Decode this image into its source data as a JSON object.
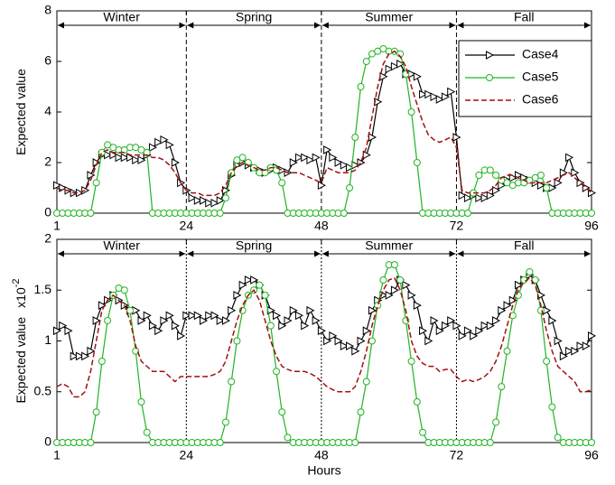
{
  "chart_data": [
    {
      "type": "line",
      "ylabel": "Expected value",
      "x": [
        1,
        2,
        3,
        4,
        5,
        6,
        7,
        8,
        9,
        10,
        11,
        12,
        13,
        14,
        15,
        16,
        17,
        18,
        19,
        20,
        21,
        22,
        23,
        24,
        25,
        26,
        27,
        28,
        29,
        30,
        31,
        32,
        33,
        34,
        35,
        36,
        37,
        38,
        39,
        40,
        41,
        42,
        43,
        44,
        45,
        46,
        47,
        48,
        49,
        50,
        51,
        52,
        53,
        54,
        55,
        56,
        57,
        58,
        59,
        60,
        61,
        62,
        63,
        64,
        65,
        66,
        67,
        68,
        69,
        70,
        71,
        72,
        73,
        74,
        75,
        76,
        77,
        78,
        79,
        80,
        81,
        82,
        83,
        84,
        85,
        86,
        87,
        88,
        89,
        90,
        91,
        92,
        93,
        94,
        95,
        96
      ],
      "xlim": [
        1,
        96
      ],
      "xticks": [
        1,
        24,
        48,
        72,
        96
      ],
      "ylim": [
        0,
        8
      ],
      "yticks": [
        0,
        2,
        4,
        6,
        8
      ],
      "seasons": [
        {
          "label": "Winter",
          "start": 1,
          "end": 24
        },
        {
          "label": "Spring",
          "start": 24,
          "end": 48
        },
        {
          "label": "Summer",
          "start": 48,
          "end": 72
        },
        {
          "label": "Fall",
          "start": 72,
          "end": 96
        }
      ],
      "legend": "upper right",
      "series": [
        {
          "name": "Case4",
          "color": "#000000",
          "marker": "triangle-right",
          "dash": false,
          "values": [
            1.1,
            1.0,
            0.9,
            0.8,
            0.8,
            0.9,
            1.5,
            2.0,
            2.3,
            2.3,
            2.3,
            2.2,
            2.2,
            2.2,
            2.1,
            2.1,
            2.3,
            2.6,
            2.8,
            2.9,
            2.7,
            2.0,
            1.2,
            0.9,
            0.6,
            0.5,
            0.5,
            0.4,
            0.4,
            0.5,
            0.9,
            1.5,
            1.9,
            2.0,
            1.9,
            1.8,
            1.7,
            1.6,
            1.7,
            1.8,
            1.7,
            1.6,
            2.0,
            2.2,
            2.2,
            2.1,
            2.2,
            1.1,
            2.5,
            2.2,
            2.0,
            1.9,
            1.8,
            1.9,
            2.0,
            2.3,
            3.0,
            4.4,
            5.4,
            5.7,
            5.8,
            5.9,
            5.5,
            5.5,
            5.4,
            4.7,
            4.7,
            4.6,
            4.5,
            4.6,
            4.8,
            3.0,
            0.7,
            0.6,
            0.7,
            0.6,
            0.6,
            0.7,
            0.9,
            1.1,
            1.3,
            1.4,
            1.5,
            1.4,
            1.3,
            1.2,
            1.1,
            1.0,
            1.0,
            1.2,
            1.6,
            2.2,
            1.6,
            1.2,
            1.0,
            0.8
          ]
        },
        {
          "name": "Case5",
          "color": "#22b422",
          "marker": "circle",
          "dash": false,
          "values": [
            0,
            0,
            0,
            0,
            0,
            0,
            0,
            1.2,
            2.4,
            2.7,
            2.6,
            2.5,
            2.5,
            2.6,
            2.6,
            2.5,
            2.4,
            0,
            0,
            0,
            0,
            0,
            0,
            0,
            0,
            0,
            0,
            0,
            0,
            0,
            0.6,
            1.6,
            2.1,
            2.2,
            2.0,
            1.8,
            1.6,
            1.6,
            1.8,
            1.7,
            1.2,
            0,
            0,
            0,
            0,
            0,
            0,
            0,
            0,
            0,
            0,
            0,
            1.0,
            3.0,
            5.0,
            6.0,
            6.3,
            6.4,
            6.5,
            6.4,
            6.4,
            6.3,
            5.5,
            4.0,
            2.0,
            0,
            0,
            0,
            0,
            0,
            0,
            0,
            0,
            0,
            0.8,
            1.5,
            1.7,
            1.7,
            1.5,
            1.3,
            1.2,
            1.1,
            1.2,
            1.2,
            1.3,
            1.4,
            1.5,
            1.0,
            0,
            0,
            0,
            0,
            0,
            0,
            0,
            0
          ]
        },
        {
          "name": "Case6",
          "color": "#a01010",
          "marker": "none",
          "dash": true,
          "values": [
            1.0,
            0.9,
            0.9,
            0.8,
            0.8,
            0.9,
            1.3,
            1.9,
            2.4,
            2.5,
            2.4,
            2.4,
            2.4,
            2.3,
            2.3,
            2.3,
            2.3,
            2.2,
            2.2,
            2.1,
            1.9,
            1.6,
            1.2,
            0.9,
            0.8,
            0.8,
            0.7,
            0.7,
            0.7,
            0.8,
            1.1,
            1.6,
            1.9,
            2.0,
            1.9,
            1.8,
            1.7,
            1.7,
            1.8,
            1.8,
            1.7,
            1.6,
            1.6,
            1.6,
            1.5,
            1.4,
            1.3,
            1.2,
            1.8,
            1.7,
            1.6,
            1.6,
            1.6,
            1.7,
            2.0,
            2.6,
            3.8,
            5.0,
            5.9,
            6.3,
            6.4,
            6.2,
            5.8,
            5.0,
            4.3,
            3.6,
            3.1,
            2.9,
            2.8,
            2.9,
            3.0,
            2.6,
            0.9,
            0.8,
            0.8,
            0.8,
            0.8,
            0.9,
            1.1,
            1.4,
            1.5,
            1.5,
            1.4,
            1.3,
            1.2,
            1.2,
            1.2,
            1.2,
            1.3,
            1.4,
            1.5,
            1.6,
            1.4,
            1.2,
            1.0,
            0.8
          ]
        }
      ]
    },
    {
      "type": "line",
      "ylabel": "Expected value",
      "y_multiplier": {
        "base": "x10",
        "exponent": "-2"
      },
      "xlabel": "Hours",
      "x": [
        1,
        2,
        3,
        4,
        5,
        6,
        7,
        8,
        9,
        10,
        11,
        12,
        13,
        14,
        15,
        16,
        17,
        18,
        19,
        20,
        21,
        22,
        23,
        24,
        25,
        26,
        27,
        28,
        29,
        30,
        31,
        32,
        33,
        34,
        35,
        36,
        37,
        38,
        39,
        40,
        41,
        42,
        43,
        44,
        45,
        46,
        47,
        48,
        49,
        50,
        51,
        52,
        53,
        54,
        55,
        56,
        57,
        58,
        59,
        60,
        61,
        62,
        63,
        64,
        65,
        66,
        67,
        68,
        69,
        70,
        71,
        72,
        73,
        74,
        75,
        76,
        77,
        78,
        79,
        80,
        81,
        82,
        83,
        84,
        85,
        86,
        87,
        88,
        89,
        90,
        91,
        92,
        93,
        94,
        95,
        96
      ],
      "xlim": [
        1,
        96
      ],
      "xticks": [
        1,
        24,
        48,
        72,
        96
      ],
      "ylim": [
        0,
        2
      ],
      "yticks": [
        0,
        0.5,
        1,
        1.5,
        2
      ],
      "seasons": [
        {
          "label": "Winter",
          "start": 1,
          "end": 24
        },
        {
          "label": "Spring",
          "start": 24,
          "end": 48
        },
        {
          "label": "Summer",
          "start": 48,
          "end": 72
        },
        {
          "label": "Fall",
          "start": 72,
          "end": 96
        }
      ],
      "series": [
        {
          "color": "#000000",
          "marker": "triangle-right",
          "dash": false,
          "values": [
            1.1,
            1.15,
            1.1,
            0.85,
            0.85,
            0.85,
            0.9,
            1.2,
            1.35,
            1.4,
            1.45,
            1.4,
            1.35,
            1.3,
            1.3,
            1.2,
            1.25,
            1.15,
            1.1,
            1.2,
            1.25,
            1.15,
            1.05,
            1.25,
            1.25,
            1.25,
            1.2,
            1.25,
            1.25,
            1.2,
            1.2,
            1.3,
            1.45,
            1.55,
            1.6,
            1.6,
            1.55,
            1.45,
            1.3,
            1.25,
            1.15,
            1.2,
            1.3,
            1.25,
            1.15,
            1.3,
            1.2,
            1.1,
            1.0,
            1.05,
            1.0,
            0.95,
            0.95,
            0.9,
            1.0,
            1.1,
            1.3,
            1.4,
            1.45,
            1.45,
            1.5,
            1.6,
            1.55,
            1.45,
            1.35,
            1.1,
            1.0,
            1.2,
            1.1,
            1.15,
            1.2,
            1.15,
            1.05,
            1.1,
            1.05,
            1.1,
            1.15,
            1.15,
            1.2,
            1.3,
            1.35,
            1.4,
            1.55,
            1.6,
            1.65,
            1.6,
            1.45,
            1.3,
            1.2,
            1.0,
            0.85,
            0.9,
            0.9,
            0.95,
            0.95,
            1.05
          ]
        },
        {
          "color": "#22b422",
          "marker": "circle",
          "dash": false,
          "values": [
            0,
            0,
            0,
            0,
            0,
            0,
            0,
            0.3,
            0.8,
            1.2,
            1.45,
            1.52,
            1.5,
            1.3,
            0.9,
            0.4,
            0.1,
            0,
            0,
            0,
            0,
            0,
            0,
            0,
            0,
            0,
            0,
            0,
            0,
            0,
            0.2,
            0.6,
            1.0,
            1.3,
            1.45,
            1.5,
            1.55,
            1.45,
            1.15,
            0.7,
            0.3,
            0.05,
            0,
            0,
            0,
            0,
            0,
            0,
            0,
            0,
            0,
            0,
            0,
            0,
            0.3,
            0.6,
            1.0,
            1.35,
            1.6,
            1.75,
            1.75,
            1.6,
            1.2,
            0.8,
            0.4,
            0.1,
            0,
            0,
            0,
            0,
            0,
            0,
            0,
            0,
            0,
            0,
            0,
            0,
            0.2,
            0.55,
            0.9,
            1.25,
            1.45,
            1.6,
            1.68,
            1.6,
            1.3,
            0.8,
            0.35,
            0.05,
            0,
            0,
            0,
            0,
            0,
            0
          ]
        },
        {
          "color": "#a01010",
          "marker": "none",
          "dash": true,
          "values": [
            0.55,
            0.58,
            0.55,
            0.45,
            0.45,
            0.5,
            0.7,
            1.0,
            1.3,
            1.4,
            1.45,
            1.4,
            1.35,
            1.2,
            0.95,
            0.8,
            0.75,
            0.7,
            0.7,
            0.7,
            0.65,
            0.6,
            0.65,
            0.65,
            0.65,
            0.65,
            0.65,
            0.65,
            0.67,
            0.7,
            0.8,
            1.0,
            1.2,
            1.35,
            1.45,
            1.5,
            1.4,
            1.2,
            1.0,
            0.85,
            0.75,
            0.72,
            0.7,
            0.7,
            0.7,
            0.68,
            0.65,
            0.6,
            0.55,
            0.52,
            0.5,
            0.5,
            0.5,
            0.55,
            0.7,
            0.9,
            1.15,
            1.35,
            1.5,
            1.6,
            1.62,
            1.5,
            1.3,
            1.0,
            0.85,
            0.78,
            0.75,
            0.75,
            0.7,
            0.72,
            0.72,
            0.65,
            0.6,
            0.62,
            0.6,
            0.62,
            0.65,
            0.7,
            0.8,
            0.95,
            1.15,
            1.35,
            1.5,
            1.58,
            1.62,
            1.55,
            1.35,
            1.1,
            0.9,
            0.75,
            0.7,
            0.65,
            0.6,
            0.5,
            0.5,
            0.52
          ]
        }
      ]
    }
  ]
}
